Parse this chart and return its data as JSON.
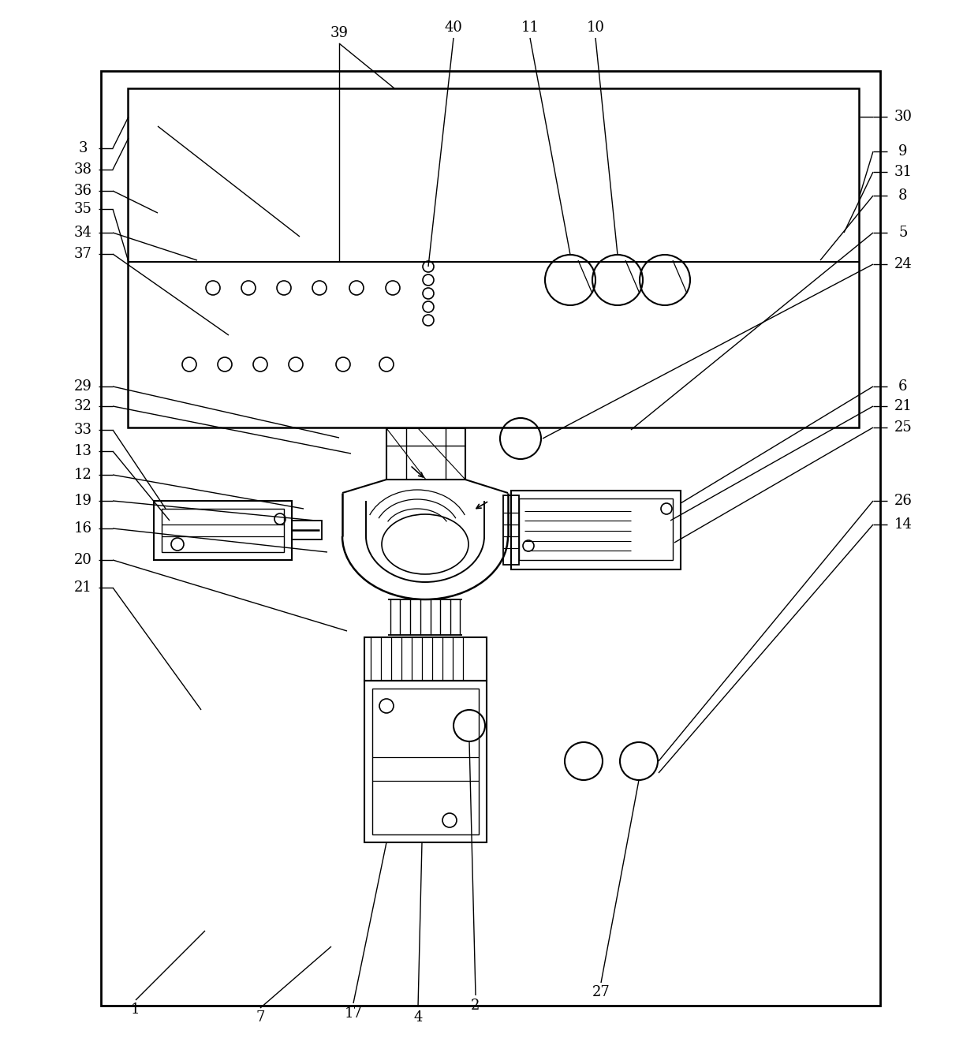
{
  "figure_width": 12.4,
  "figure_height": 13.49,
  "dpi": 100,
  "bg_color": "#ffffff",
  "line_color": "#000000"
}
